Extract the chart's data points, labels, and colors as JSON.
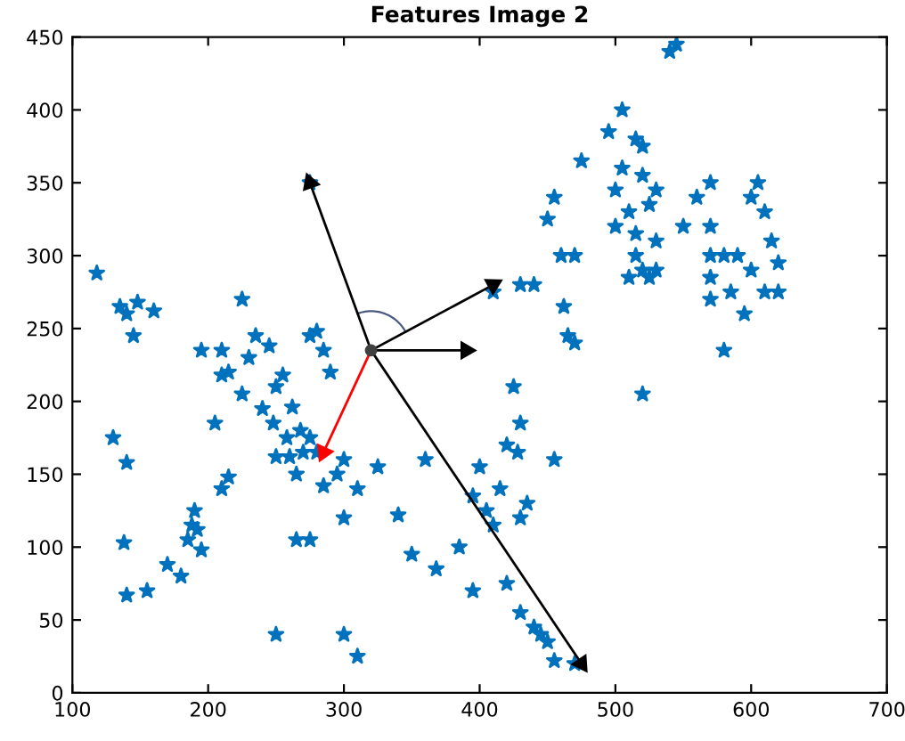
{
  "chart_data": {
    "type": "scatter",
    "title": "Features Image 2",
    "xlim": [
      100,
      700
    ],
    "ylim": [
      0,
      450
    ],
    "xticks": [
      100,
      200,
      300,
      400,
      500,
      600,
      700
    ],
    "yticks": [
      0,
      50,
      100,
      150,
      200,
      250,
      300,
      350,
      400,
      450
    ],
    "grid": false,
    "series": [
      {
        "color": "#0072bd",
        "marker": "star",
        "x": [
          118,
          135,
          140,
          148,
          160,
          145,
          130,
          140,
          138,
          140,
          155,
          170,
          180,
          185,
          188,
          192,
          195,
          190,
          210,
          215,
          195,
          210,
          210,
          215,
          205,
          225,
          235,
          230,
          225,
          245,
          255,
          250,
          240,
          248,
          258,
          262,
          268,
          275,
          280,
          285,
          290,
          275,
          280,
          270,
          250,
          260,
          265,
          285,
          295,
          300,
          310,
          300,
          265,
          275,
          325,
          340,
          360,
          350,
          368,
          385,
          395,
          395,
          400,
          405,
          410,
          430,
          435,
          420,
          430,
          440,
          445,
          450,
          470,
          455,
          250,
          300,
          310,
          275,
          410,
          430,
          425,
          430,
          428,
          415,
          420,
          440,
          450,
          455,
          460,
          470,
          462,
          465,
          475,
          495,
          505,
          515,
          520,
          520,
          505,
          500,
          510,
          515,
          515,
          520,
          525,
          530,
          510,
          530,
          525,
          530,
          540,
          545,
          500,
          520,
          550,
          560,
          570,
          570,
          570,
          570,
          570,
          580,
          585,
          580,
          590,
          600,
          605,
          610,
          615,
          600,
          610,
          620,
          620,
          595,
          470,
          455
        ],
        "values": [
          288,
          265,
          260,
          268,
          262,
          245,
          175,
          158,
          103,
          67,
          70,
          88,
          80,
          105,
          115,
          112,
          98,
          125,
          140,
          148,
          235,
          235,
          218,
          220,
          185,
          270,
          245,
          230,
          205,
          238,
          218,
          210,
          195,
          185,
          175,
          196,
          180,
          245,
          248,
          235,
          220,
          175,
          165,
          165,
          162,
          162,
          150,
          142,
          150,
          160,
          140,
          120,
          105,
          105,
          155,
          122,
          160,
          95,
          85,
          100,
          70,
          135,
          155,
          125,
          115,
          120,
          130,
          75,
          55,
          45,
          40,
          35,
          20,
          22,
          40,
          40,
          25,
          350,
          275,
          280,
          210,
          185,
          165,
          140,
          170,
          280,
          325,
          340,
          300,
          300,
          265,
          245,
          365,
          385,
          400,
          380,
          375,
          355,
          360,
          345,
          330,
          315,
          300,
          290,
          285,
          290,
          285,
          310,
          335,
          345,
          440,
          445,
          320,
          205,
          320,
          340,
          350,
          320,
          300,
          285,
          270,
          300,
          275,
          235,
          300,
          340,
          350,
          330,
          310,
          290,
          275,
          295,
          275,
          260,
          240,
          160
        ]
      },
      {
        "type": "line",
        "color": "#000000",
        "marker": "triangle",
        "line_style": "solid",
        "x": [
          320,
          275
        ],
        "values": [
          235,
          350
        ]
      },
      {
        "type": "line",
        "color": "#000000",
        "marker": "triangle",
        "line_style": "solid",
        "x": [
          320,
          410
        ],
        "values": [
          235,
          280
        ]
      },
      {
        "type": "line",
        "color": "#000000",
        "marker": "triangle",
        "line_style": "solid",
        "x": [
          320,
          390
        ],
        "values": [
          235,
          235
        ]
      },
      {
        "type": "line",
        "color": "#ff0000",
        "marker": "triangle",
        "line_style": "solid",
        "x": [
          320,
          285
        ],
        "values": [
          235,
          165
        ]
      },
      {
        "type": "line",
        "color": "#000000",
        "marker": "triangle",
        "line_style": "solid",
        "x": [
          320,
          475
        ],
        "values": [
          235,
          20
        ]
      },
      {
        "type": "scatter",
        "color": "#404040",
        "marker": "circle",
        "x": [
          320
        ],
        "values": [
          235
        ]
      }
    ]
  }
}
